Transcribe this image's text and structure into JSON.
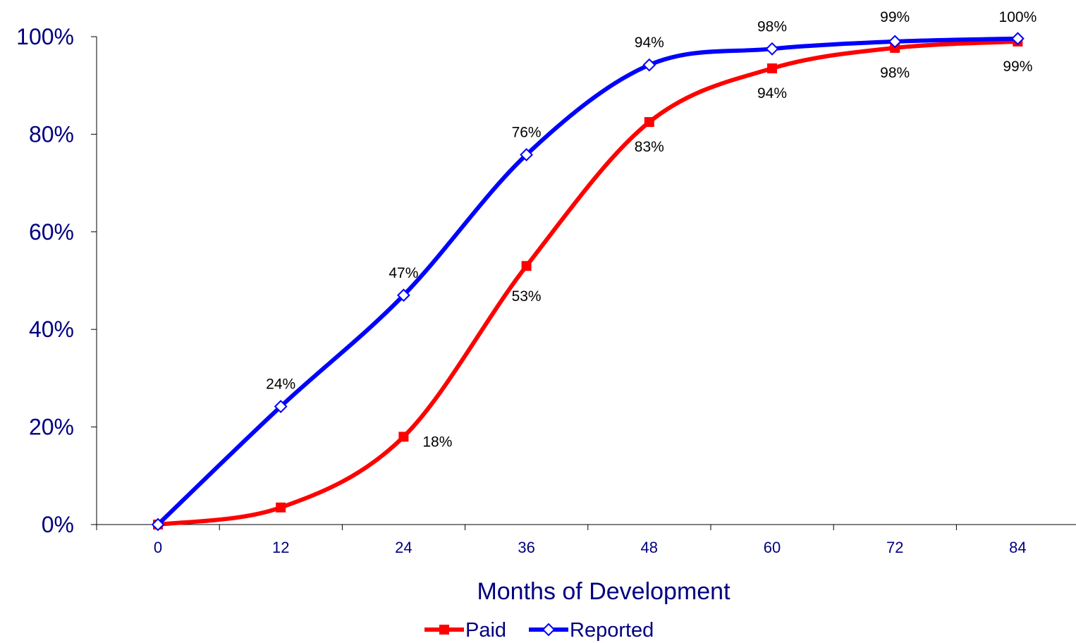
{
  "chart_data": {
    "type": "line",
    "x": [
      0,
      12,
      24,
      36,
      48,
      60,
      72,
      84
    ],
    "series": [
      {
        "name": "Paid",
        "color": "#ff0000",
        "marker": "square",
        "values": [
          0,
          3.5,
          18,
          53,
          82.5,
          93.5,
          97.7,
          99
        ],
        "labels": [
          "",
          "",
          "18%",
          "53%",
          "83%",
          "94%",
          "98%",
          "99%"
        ]
      },
      {
        "name": "Reported",
        "color": "#0000ff",
        "marker": "diamond-open",
        "values": [
          0,
          24.2,
          47,
          75.8,
          94.2,
          97.5,
          99,
          99.6
        ],
        "labels": [
          "",
          "24%",
          "47%",
          "76%",
          "94%",
          "98%",
          "99%",
          "100%"
        ]
      }
    ],
    "xlabel": "Months of Development",
    "ylabel": "",
    "ylim": [
      0,
      100
    ],
    "yticks": [
      "0%",
      "20%",
      "40%",
      "60%",
      "80%",
      "100%"
    ],
    "xticks": [
      "0",
      "12",
      "24",
      "36",
      "48",
      "60",
      "72",
      "84"
    ],
    "legend": {
      "position": "bottom",
      "entries": [
        "Paid",
        "Reported"
      ]
    },
    "grid": false,
    "smooth": true
  }
}
